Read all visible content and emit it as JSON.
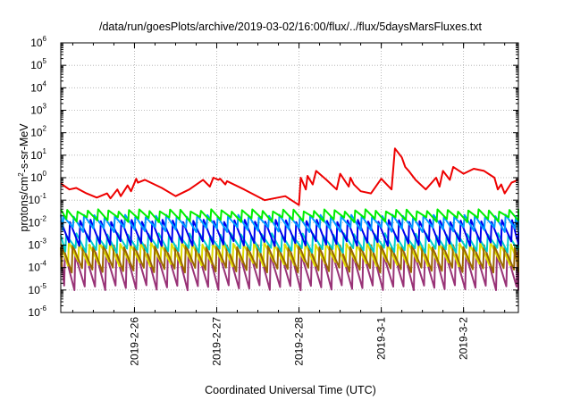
{
  "chart_data": {
    "type": "line",
    "title": "/data/run/goesPlots/archive/2019-03-02/16:00/flux/../flux/5daysMarsFluxes.txt",
    "xlabel": "Coordinated Universal Time (UTC)",
    "ylabel": "protons/cm2-s-sr-MeV",
    "y_scale": "log",
    "ylim": [
      1e-06,
      1000000.0
    ],
    "y_ticks": [
      {
        "base": "10",
        "exp": "-6",
        "value": 1e-06
      },
      {
        "base": "10",
        "exp": "-5",
        "value": 1e-05
      },
      {
        "base": "10",
        "exp": "-4",
        "value": 0.0001
      },
      {
        "base": "10",
        "exp": "-3",
        "value": 0.001
      },
      {
        "base": "10",
        "exp": "-2",
        "value": 0.01
      },
      {
        "base": "10",
        "exp": "-1",
        "value": 0.1
      },
      {
        "base": "10",
        "exp": "0",
        "value": 1
      },
      {
        "base": "10",
        "exp": "1",
        "value": 10
      },
      {
        "base": "10",
        "exp": "2",
        "value": 100
      },
      {
        "base": "10",
        "exp": "3",
        "value": 1000
      },
      {
        "base": "10",
        "exp": "4",
        "value": 10000
      },
      {
        "base": "10",
        "exp": "5",
        "value": 100000
      },
      {
        "base": "10",
        "exp": "6",
        "value": 1000000
      }
    ],
    "xlim": [
      "2019-02-25T02:30",
      "2019-03-02T16:00"
    ],
    "x_ticks": [
      {
        "label": "2019-2-26",
        "value": "2019-02-26T00:00"
      },
      {
        "label": "2019-2-27",
        "value": "2019-02-27T00:00"
      },
      {
        "label": "2019-2-28",
        "value": "2019-02-28T00:00"
      },
      {
        "label": "2019-3-1",
        "value": "2019-03-01T00:00"
      },
      {
        "label": "2019-3-2",
        "value": "2019-03-02T00:00"
      }
    ],
    "grid": true,
    "series": [
      {
        "color": "#ee0000",
        "style": "irregular",
        "x": [
          "2019-02-25T02:30",
          "2019-02-25T05:00",
          "2019-02-25T07:00",
          "2019-02-25T10:00",
          "2019-02-25T13:00",
          "2019-02-25T16:00",
          "2019-02-25T17:00",
          "2019-02-25T19:00",
          "2019-02-25T20:00",
          "2019-02-25T22:00",
          "2019-02-25T23:00",
          "2019-02-26T00:30",
          "2019-02-26T01:00",
          "2019-02-26T03:00",
          "2019-02-26T08:00",
          "2019-02-26T12:00",
          "2019-02-26T16:00",
          "2019-02-26T20:00",
          "2019-02-26T22:00",
          "2019-02-26T23:00",
          "2019-02-27T00:30",
          "2019-02-27T01:00",
          "2019-02-27T02:30",
          "2019-02-27T03:00",
          "2019-02-27T08:00",
          "2019-02-27T14:00",
          "2019-02-27T20:00",
          "2019-02-28T00:00",
          "2019-02-28T00:30",
          "2019-02-28T02:00",
          "2019-02-28T02:30",
          "2019-02-28T04:00",
          "2019-02-28T05:00",
          "2019-02-28T08:00",
          "2019-02-28T11:00",
          "2019-02-28T12:00",
          "2019-02-28T14:30",
          "2019-02-28T15:00",
          "2019-02-28T16:00",
          "2019-02-28T18:00",
          "2019-02-28T21:00",
          "2019-03-01T00:00",
          "2019-03-01T03:00",
          "2019-03-01T04:00",
          "2019-03-01T06:00",
          "2019-03-01T07:00",
          "2019-03-01T08:00",
          "2019-03-01T10:00",
          "2019-03-01T13:00",
          "2019-03-01T16:00",
          "2019-03-01T17:00",
          "2019-03-01T18:00",
          "2019-03-01T20:00",
          "2019-03-01T21:00",
          "2019-03-02T00:00",
          "2019-03-02T03:00",
          "2019-03-02T06:00",
          "2019-03-02T09:00",
          "2019-03-02T10:00",
          "2019-03-02T11:00",
          "2019-03-02T12:00",
          "2019-03-02T14:00",
          "2019-03-02T16:00"
        ],
        "y": [
          0.55,
          0.3,
          0.35,
          0.2,
          0.13,
          0.2,
          0.12,
          0.3,
          0.15,
          0.45,
          0.25,
          0.9,
          0.6,
          0.8,
          0.35,
          0.15,
          0.3,
          0.8,
          0.4,
          1.0,
          0.8,
          0.9,
          0.5,
          0.7,
          0.3,
          0.1,
          0.15,
          0.06,
          1.0,
          0.3,
          1.2,
          0.5,
          2.0,
          0.8,
          0.3,
          1.5,
          0.4,
          1.0,
          0.5,
          0.25,
          0.2,
          0.9,
          0.3,
          20,
          8,
          3,
          2,
          0.8,
          0.3,
          1.0,
          0.4,
          2.0,
          0.8,
          3.0,
          1.5,
          2.5,
          2.0,
          1.0,
          0.3,
          0.5,
          0.2,
          0.6,
          0.8
        ]
      },
      {
        "color": "#00ee00",
        "style": "sawtooth",
        "hi": 0.035,
        "lo": 0.014
      },
      {
        "color": "#0099ff",
        "style": "sawtooth",
        "hi": 0.02,
        "lo": 0.005
      },
      {
        "color": "#0000ee",
        "style": "sawtooth",
        "hi": 0.012,
        "lo": 0.0012
      },
      {
        "color": "#00cccc",
        "style": "sawtooth",
        "hi": 0.003,
        "lo": 0.0006
      },
      {
        "color": "#996600",
        "style": "sawtooth",
        "hi": 0.0009,
        "lo": 8e-05
      },
      {
        "color": "#dddd00",
        "style": "sawtooth",
        "hi": 0.0012,
        "lo": 0.00015
      },
      {
        "color": "#993377",
        "style": "sawtooth",
        "hi": 0.0004,
        "lo": 1.3e-05
      }
    ]
  }
}
